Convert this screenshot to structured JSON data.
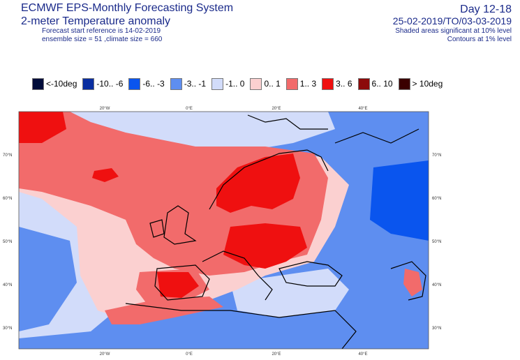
{
  "header": {
    "title": "ECMWF EPS-Monthly Forecasting System",
    "subtitle": "2-meter Temperature anomaly",
    "forecast_start": "Forecast start reference is 14-02-2019",
    "ensemble": "ensemble size = 51  ,climate size = 660",
    "day_range": "Day 12-18",
    "date_range": "25-02-2019/TO/03-03-2019",
    "shaded_note": "Shaded areas significant at 10% level",
    "contour_note": "Contours at 1% level"
  },
  "legend": [
    {
      "label": "<-10deg",
      "color": "#000c3a"
    },
    {
      "label": "-10.. -6",
      "color": "#0a2ea0"
    },
    {
      "label": "-6.. -3",
      "color": "#0a55ee"
    },
    {
      "label": "-3.. -1",
      "color": "#5e8ef0"
    },
    {
      "label": "-1..  0",
      "color": "#d2dcfa"
    },
    {
      "label": "0..  1",
      "color": "#fbd0d0"
    },
    {
      "label": "1..  3",
      "color": "#f26b6b"
    },
    {
      "label": "3..  6",
      "color": "#ef1010"
    },
    {
      "label": "6.. 10",
      "color": "#8c0a0a"
    },
    {
      "label": "> 10deg",
      "color": "#3a0000"
    }
  ],
  "map": {
    "lon_labels_top": [
      "20°W",
      "0°E",
      "20°E",
      "40°E"
    ],
    "lon_labels_bottom": [
      "20°W",
      "0°E",
      "20°E",
      "40°E"
    ],
    "lat_labels_left": [
      "70°N",
      "60°N",
      "50°N",
      "40°N",
      "30°N"
    ],
    "lat_labels_right": [
      "70°N",
      "60°N",
      "50°N",
      "40°N",
      "30°N"
    ]
  }
}
